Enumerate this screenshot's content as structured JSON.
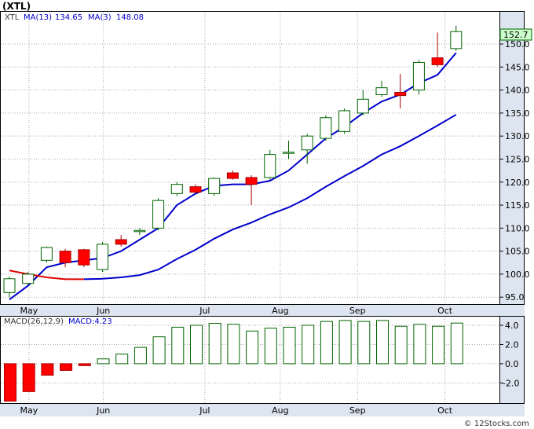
{
  "title": "(XTL)",
  "footer": "© 12Stocks.com",
  "legend": {
    "symbol": "XTL",
    "ma13_label": "MA(13)",
    "ma13_value": "134.65",
    "ma3_label": "MA(3)",
    "ma3_value": "148.08",
    "last_price": "152.7",
    "macd_label": "MACD(26,12,9)",
    "macd_value_label": "MACD:4.23"
  },
  "colors": {
    "up_candle": "#006400",
    "down_candle": "#ff0000",
    "ma_short": "#0000cc",
    "ma_long_start": "#dd0000",
    "macd_bar": "#006400",
    "axis_band": "#dde6f0",
    "last_price_box": "#ccffcc"
  },
  "chart_data": [
    {
      "type": "candlestick",
      "x_labels": [
        "May",
        "Jun",
        "Jul",
        "Aug",
        "Sep",
        "Oct"
      ],
      "y_ticks": [
        95.0,
        100.0,
        105.0,
        110.0,
        115.0,
        120.0,
        125.0,
        130.0,
        135.0,
        140.0,
        145.0,
        150.0
      ],
      "ylim": [
        93.5,
        157
      ],
      "last_price": 152.7,
      "candles": [
        {
          "o": 96.0,
          "h": 99.5,
          "l": 95.0,
          "c": 99.0
        },
        {
          "o": 98.0,
          "h": 100.5,
          "l": 97.5,
          "c": 100.0
        },
        {
          "o": 103.0,
          "h": 106.0,
          "l": 102.5,
          "c": 105.8
        },
        {
          "o": 105.0,
          "h": 105.5,
          "l": 101.5,
          "c": 102.5
        },
        {
          "o": 105.3,
          "h": 105.5,
          "l": 101.5,
          "c": 102.0
        },
        {
          "o": 101.0,
          "h": 107.0,
          "l": 100.5,
          "c": 106.5
        },
        {
          "o": 107.5,
          "h": 108.5,
          "l": 106.0,
          "c": 106.5
        },
        {
          "o": 109.3,
          "h": 110.0,
          "l": 108.5,
          "c": 109.5
        },
        {
          "o": 110.0,
          "h": 116.5,
          "l": 109.5,
          "c": 116.0
        },
        {
          "o": 117.5,
          "h": 120.0,
          "l": 117.0,
          "c": 119.5
        },
        {
          "o": 119.0,
          "h": 119.5,
          "l": 117.5,
          "c": 117.8
        },
        {
          "o": 117.5,
          "h": 121.0,
          "l": 117.0,
          "c": 120.8
        },
        {
          "o": 122.0,
          "h": 122.5,
          "l": 120.5,
          "c": 120.8
        },
        {
          "o": 121.0,
          "h": 121.5,
          "l": 115.0,
          "c": 119.5
        },
        {
          "o": 121.0,
          "h": 127.0,
          "l": 120.5,
          "c": 126.0
        },
        {
          "o": 126.5,
          "h": 129.0,
          "l": 125.0,
          "c": 126.5
        },
        {
          "o": 127.0,
          "h": 130.5,
          "l": 124.0,
          "c": 130.0
        },
        {
          "o": 129.5,
          "h": 134.5,
          "l": 129.0,
          "c": 134.0
        },
        {
          "o": 131.0,
          "h": 136.0,
          "l": 130.5,
          "c": 135.5
        },
        {
          "o": 135.0,
          "h": 140.0,
          "l": 134.5,
          "c": 138.0
        },
        {
          "o": 139.0,
          "h": 142.0,
          "l": 138.5,
          "c": 140.5
        },
        {
          "o": 139.5,
          "h": 143.5,
          "l": 136.0,
          "c": 138.8
        },
        {
          "o": 140.0,
          "h": 146.5,
          "l": 139.0,
          "c": 146.0
        },
        {
          "o": 147.0,
          "h": 152.5,
          "l": 145.0,
          "c": 145.5
        },
        {
          "o": 149.0,
          "h": 154.0,
          "l": 148.5,
          "c": 152.7
        }
      ],
      "ma_short": [
        94.5,
        97.5,
        101.5,
        102.5,
        103.0,
        103.5,
        105.0,
        107.5,
        110.0,
        115.0,
        117.5,
        119.2,
        119.5,
        119.5,
        120.3,
        122.5,
        126.0,
        129.5,
        132.0,
        135.0,
        137.5,
        139.0,
        141.5,
        143.3,
        148.08
      ],
      "ma_long": [
        100.8,
        100.0,
        99.3,
        98.9,
        98.9,
        99.0,
        99.3,
        99.8,
        101.0,
        103.3,
        105.3,
        107.7,
        109.7,
        111.2,
        113.0,
        114.5,
        116.5,
        119.0,
        121.3,
        123.5,
        126.0,
        127.8,
        130.0,
        132.3,
        134.65
      ],
      "ma_long_red_until": 4
    },
    {
      "type": "bar",
      "x_labels": [
        "May",
        "Jun",
        "Jul",
        "Aug",
        "Sep",
        "Oct"
      ],
      "y_ticks": [
        -2.0,
        0.0,
        2.0,
        4.0
      ],
      "ylim": [
        -4.1,
        4.9
      ],
      "values": [
        -3.9,
        -2.9,
        -1.2,
        -0.7,
        -0.2,
        0.5,
        1.0,
        1.7,
        2.8,
        3.8,
        4.0,
        4.2,
        4.1,
        3.4,
        3.7,
        3.8,
        4.0,
        4.4,
        4.5,
        4.4,
        4.5,
        3.9,
        4.1,
        3.9,
        4.23
      ]
    }
  ]
}
